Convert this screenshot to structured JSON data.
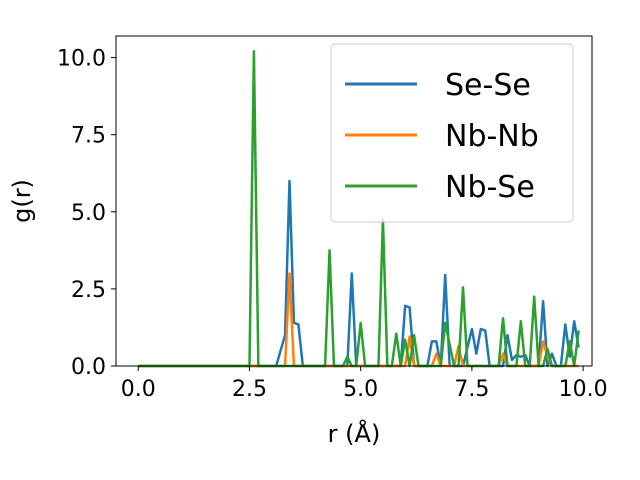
{
  "chart_data": {
    "type": "line",
    "title": "",
    "xlabel": "r (Å)",
    "ylabel": "g(r)",
    "xlim": [
      -0.5,
      10.2
    ],
    "ylim": [
      0,
      10.7
    ],
    "xticks": [
      0.0,
      2.5,
      5.0,
      7.5,
      10.0
    ],
    "xtick_labels": [
      "0.0",
      "2.5",
      "5.0",
      "7.5",
      "10.0"
    ],
    "yticks": [
      0.0,
      2.5,
      5.0,
      7.5,
      10.0
    ],
    "ytick_labels": [
      "0.0",
      "2.5",
      "5.0",
      "7.5",
      "10.0"
    ],
    "grid": false,
    "legend_position": "top-right",
    "series": [
      {
        "name": "Se-Se",
        "color": "#1f77b4",
        "x": [
          0.0,
          3.1,
          3.3,
          3.4,
          3.5,
          3.6,
          3.7,
          3.9,
          4.3,
          4.5,
          4.7,
          4.8,
          4.9,
          5.0,
          5.1,
          5.3,
          5.4,
          5.5,
          5.6,
          5.7,
          5.8,
          5.9,
          6.0,
          6.1,
          6.2,
          6.3,
          6.5,
          6.6,
          6.7,
          6.8,
          6.9,
          7.0,
          7.1,
          7.2,
          7.3,
          7.5,
          7.6,
          7.7,
          7.8,
          7.9,
          8.0,
          8.1,
          8.2,
          8.3,
          8.4,
          8.5,
          8.6,
          8.7,
          8.8,
          8.9,
          9.0,
          9.1,
          9.2,
          9.3,
          9.4,
          9.5,
          9.6,
          9.7,
          9.8,
          9.9
        ],
        "y": [
          0.0,
          0.0,
          1.0,
          6.0,
          1.4,
          1.35,
          0.0,
          0.0,
          0.0,
          0.0,
          0.0,
          3.0,
          0.0,
          0.0,
          0.0,
          0.0,
          0.0,
          0.0,
          0.0,
          0.0,
          0.0,
          0.0,
          1.95,
          1.9,
          0.0,
          0.0,
          0.0,
          0.8,
          0.8,
          0.0,
          2.95,
          0.0,
          0.0,
          0.0,
          0.0,
          1.2,
          0.4,
          1.2,
          1.15,
          0.0,
          0.0,
          0.0,
          0.0,
          1.0,
          0.2,
          0.35,
          0.3,
          0.35,
          0.0,
          0.0,
          0.0,
          2.1,
          0.0,
          0.4,
          0.0,
          0.0,
          1.35,
          0.3,
          1.45,
          0.6
        ]
      },
      {
        "name": "Nb-Nb",
        "color": "#ff7f0e",
        "x": [
          0.0,
          3.3,
          3.4,
          3.5,
          3.6,
          6.0,
          6.1,
          6.2,
          6.6,
          6.7,
          6.8,
          6.9,
          7.0,
          7.1,
          7.2,
          7.3,
          7.4,
          7.5,
          8.0,
          8.1,
          8.2,
          8.3,
          8.4,
          8.8,
          8.9,
          9.0,
          9.1,
          9.2,
          9.3,
          9.4,
          9.5,
          9.9
        ],
        "y": [
          0.0,
          0.0,
          3.0,
          0.0,
          0.0,
          0.0,
          0.95,
          0.0,
          0.0,
          0.4,
          0.0,
          0.0,
          0.0,
          0.0,
          0.65,
          0.0,
          0.0,
          0.0,
          0.0,
          0.0,
          0.4,
          0.0,
          0.0,
          0.0,
          0.0,
          0.0,
          0.8,
          0.3,
          0.0,
          0.0,
          0.0,
          0.0
        ]
      },
      {
        "name": "Nb-Se",
        "color": "#2ca02c",
        "x": [
          0.0,
          2.4,
          2.5,
          2.6,
          2.7,
          2.8,
          3.4,
          3.5,
          4.1,
          4.2,
          4.3,
          4.4,
          4.6,
          4.7,
          4.8,
          4.9,
          5.0,
          5.1,
          5.2,
          5.4,
          5.5,
          5.6,
          5.7,
          5.8,
          5.9,
          6.0,
          6.1,
          6.2,
          6.3,
          6.4,
          6.5,
          6.6,
          6.7,
          6.8,
          6.9,
          7.0,
          7.1,
          7.2,
          7.3,
          7.4,
          7.5,
          7.6,
          7.7,
          7.8,
          7.9,
          8.0,
          8.1,
          8.2,
          8.3,
          8.4,
          8.5,
          8.6,
          8.7,
          8.8,
          8.9,
          9.0,
          9.1,
          9.2,
          9.3,
          9.4,
          9.5,
          9.6,
          9.7,
          9.8,
          9.9
        ],
        "y": [
          0.0,
          0.0,
          0.0,
          10.2,
          0.0,
          0.0,
          0.0,
          0.0,
          0.0,
          0.0,
          3.75,
          0.0,
          0.0,
          0.3,
          0.0,
          0.0,
          1.4,
          0.0,
          0.0,
          0.0,
          4.75,
          0.0,
          0.0,
          1.05,
          0.0,
          0.85,
          0.0,
          1.0,
          0.0,
          0.0,
          0.0,
          0.0,
          0.0,
          0.0,
          1.4,
          0.7,
          0.0,
          0.0,
          2.55,
          0.0,
          0.0,
          0.0,
          0.0,
          0.0,
          0.0,
          0.0,
          0.0,
          1.55,
          0.0,
          0.0,
          0.0,
          1.45,
          0.0,
          0.0,
          2.25,
          0.0,
          0.0,
          0.55,
          0.0,
          0.0,
          0.0,
          0.0,
          0.8,
          0.0,
          1.15
        ]
      }
    ]
  }
}
